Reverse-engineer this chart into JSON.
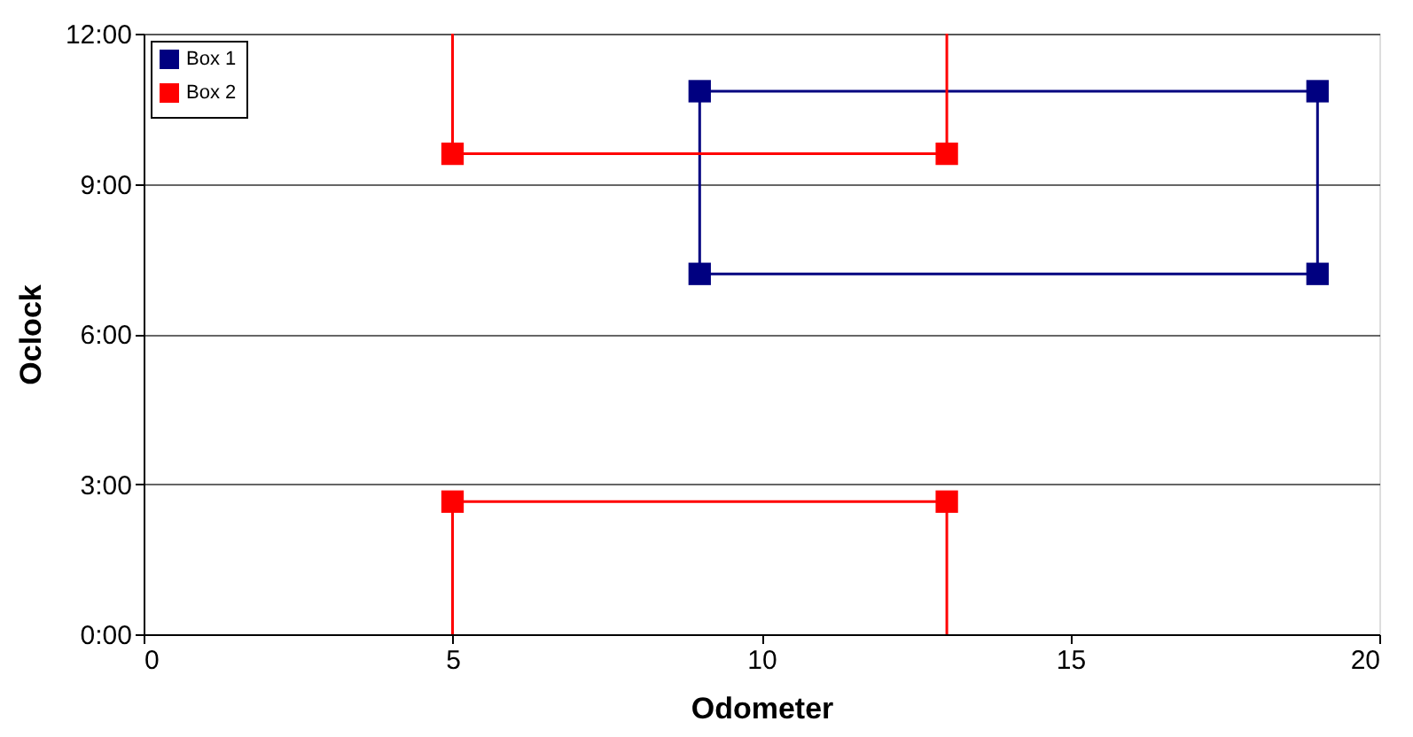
{
  "chart_data": {
    "type": "line",
    "xlabel": "Odometer",
    "ylabel": "Oclock",
    "xlim": [
      0,
      20
    ],
    "xticks": [
      0,
      5,
      10,
      15,
      20
    ],
    "ylim": [
      0,
      12
    ],
    "yticks": [
      {
        "value": 0,
        "label": "0:00"
      },
      {
        "value": 3,
        "label": "3:00"
      },
      {
        "value": 6,
        "label": "6:00"
      },
      {
        "value": 9,
        "label": "9:00"
      },
      {
        "value": 12,
        "label": "12:00"
      }
    ],
    "grid": "y",
    "legend": "top left",
    "series": [
      {
        "name": "Box 1",
        "type": "line",
        "marker": "square",
        "color": "#000080",
        "x": [
          9,
          9,
          19,
          19
        ],
        "values": [
          7.2,
          10.85,
          10.85,
          7.2
        ]
      },
      {
        "marker": "none",
        "color": "#000080",
        "x": [
          9,
          19
        ],
        "values": [
          7.2,
          7.2
        ]
      },
      {
        "marker": "none",
        "color": "#ff0000",
        "x": [
          5,
          5,
          13,
          13
        ],
        "values": [
          12,
          9.6,
          9.6,
          12
        ]
      },
      {
        "marker": "none",
        "color": "#ff0000",
        "x": [
          5,
          5,
          13,
          13
        ],
        "values": [
          0,
          2.65,
          2.65,
          0
        ]
      },
      {
        "name": "Box 2",
        "type": "scatter",
        "marker": "square",
        "color": "#ff0000",
        "x": [
          5,
          13,
          5,
          13
        ],
        "values": [
          9.6,
          9.6,
          2.65,
          2.65
        ]
      }
    ]
  }
}
